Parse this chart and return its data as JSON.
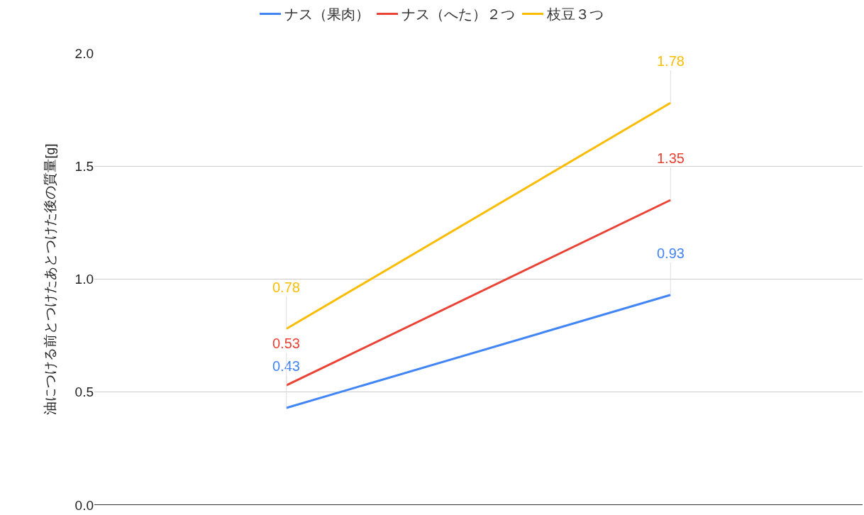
{
  "chart_data": {
    "type": "line",
    "categories": [
      null,
      null
    ],
    "series": [
      {
        "name": "ナス（果肉）",
        "color": "#4285f4",
        "values": [
          0.43,
          0.93
        ]
      },
      {
        "name": "ナス（へた）２つ",
        "color": "#ea4335",
        "values": [
          0.53,
          1.35
        ]
      },
      {
        "name": "枝豆３つ",
        "color": "#fbbc04",
        "values": [
          0.78,
          1.78
        ]
      }
    ],
    "ylabel": "油につける前とつけたあとつけた後の質量[g]",
    "ylim": [
      0,
      2
    ],
    "yticks": [
      {
        "value": 0,
        "label": "0.0"
      },
      {
        "value": 0.5,
        "label": "0.5"
      },
      {
        "value": 1,
        "label": "1.0"
      },
      {
        "value": 1.5,
        "label": "1.5"
      },
      {
        "value": 2,
        "label": "2.0"
      }
    ],
    "grid": "y",
    "legend": "top",
    "data_labels": true
  }
}
